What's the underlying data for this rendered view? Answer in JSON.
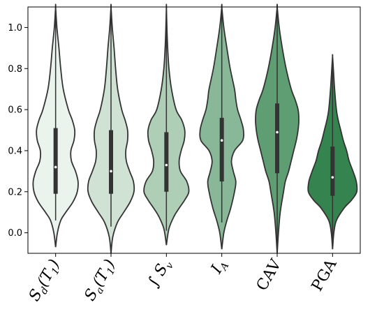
{
  "chart_data": {
    "type": "violin",
    "ylim": [
      -0.1,
      1.1
    ],
    "yticks": [
      0.0,
      0.2,
      0.4,
      0.6,
      0.8,
      1.0
    ],
    "ytick_labels": [
      "0.0",
      "0.2",
      "0.4",
      "0.6",
      "0.8",
      "1.0"
    ],
    "grid": false,
    "categories": [
      "S_d(T_1)",
      "S_a(T_1)",
      "∫S_v",
      "I_A",
      "CAV",
      "PGA"
    ],
    "category_labels": [
      {
        "main": "S",
        "sub": "d",
        "suffix": "(T",
        "sub2": "1",
        "end": ")"
      },
      {
        "main": "S",
        "sub": "a",
        "suffix": "(T",
        "sub2": "1",
        "end": ")"
      },
      {
        "main": "∫ S",
        "sub": "v",
        "suffix": "",
        "sub2": "",
        "end": ""
      },
      {
        "main": "I",
        "sub": "A",
        "suffix": "",
        "sub2": "",
        "end": ""
      },
      {
        "main": "CAV",
        "sub": "",
        "suffix": "",
        "sub2": "",
        "end": ""
      },
      {
        "main": "PGA",
        "sub": "",
        "suffix": "",
        "sub2": "",
        "end": ""
      }
    ],
    "colors": [
      "#eaf3ec",
      "#cfe2d4",
      "#aecfb5",
      "#89b898",
      "#5f9d72",
      "#35844f"
    ],
    "series": [
      {
        "min": -0.07,
        "max": 1.1,
        "q1": 0.19,
        "median": 0.32,
        "q3": 0.51,
        "whisker_low": 0.06,
        "whisker_high": 1.1,
        "density": [
          [
            -0.07,
            0
          ],
          [
            0.0,
            0.07
          ],
          [
            0.06,
            0.2
          ],
          [
            0.1,
            0.4
          ],
          [
            0.15,
            0.68
          ],
          [
            0.2,
            0.85
          ],
          [
            0.25,
            0.88
          ],
          [
            0.3,
            0.78
          ],
          [
            0.35,
            0.62
          ],
          [
            0.4,
            0.6
          ],
          [
            0.45,
            0.72
          ],
          [
            0.5,
            0.75
          ],
          [
            0.55,
            0.65
          ],
          [
            0.6,
            0.5
          ],
          [
            0.7,
            0.3
          ],
          [
            0.8,
            0.2
          ],
          [
            0.9,
            0.13
          ],
          [
            1.0,
            0.05
          ],
          [
            1.1,
            0
          ]
        ]
      },
      {
        "min": -0.1,
        "max": 1.1,
        "q1": 0.19,
        "median": 0.3,
        "q3": 0.5,
        "whisker_low": 0.03,
        "whisker_high": 1.1,
        "density": [
          [
            -0.1,
            0
          ],
          [
            -0.02,
            0.07
          ],
          [
            0.05,
            0.25
          ],
          [
            0.1,
            0.5
          ],
          [
            0.15,
            0.75
          ],
          [
            0.2,
            0.9
          ],
          [
            0.25,
            0.88
          ],
          [
            0.3,
            0.73
          ],
          [
            0.35,
            0.6
          ],
          [
            0.4,
            0.58
          ],
          [
            0.45,
            0.65
          ],
          [
            0.5,
            0.65
          ],
          [
            0.55,
            0.55
          ],
          [
            0.6,
            0.42
          ],
          [
            0.7,
            0.26
          ],
          [
            0.8,
            0.18
          ],
          [
            0.9,
            0.12
          ],
          [
            1.0,
            0.05
          ],
          [
            1.1,
            0
          ]
        ]
      },
      {
        "min": -0.06,
        "max": 1.1,
        "q1": 0.2,
        "median": 0.33,
        "q3": 0.49,
        "whisker_low": 0.01,
        "whisker_high": 1.1,
        "density": [
          [
            -0.06,
            0
          ],
          [
            0.02,
            0.1
          ],
          [
            0.08,
            0.3
          ],
          [
            0.12,
            0.5
          ],
          [
            0.16,
            0.72
          ],
          [
            0.2,
            0.88
          ],
          [
            0.25,
            0.8
          ],
          [
            0.3,
            0.55
          ],
          [
            0.35,
            0.5
          ],
          [
            0.4,
            0.58
          ],
          [
            0.45,
            0.7
          ],
          [
            0.5,
            0.72
          ],
          [
            0.55,
            0.6
          ],
          [
            0.6,
            0.38
          ],
          [
            0.7,
            0.2
          ],
          [
            0.8,
            0.1
          ],
          [
            0.9,
            0.05
          ],
          [
            1.0,
            0.02
          ],
          [
            1.1,
            0
          ]
        ]
      },
      {
        "min": -0.08,
        "max": 1.1,
        "q1": 0.25,
        "median": 0.45,
        "q3": 0.56,
        "whisker_low": 0.05,
        "whisker_high": 1.1,
        "density": [
          [
            -0.08,
            0
          ],
          [
            0.0,
            0.08
          ],
          [
            0.06,
            0.2
          ],
          [
            0.12,
            0.35
          ],
          [
            0.2,
            0.5
          ],
          [
            0.25,
            0.55
          ],
          [
            0.3,
            0.45
          ],
          [
            0.35,
            0.38
          ],
          [
            0.4,
            0.5
          ],
          [
            0.45,
            0.82
          ],
          [
            0.5,
            0.85
          ],
          [
            0.55,
            0.75
          ],
          [
            0.6,
            0.62
          ],
          [
            0.65,
            0.55
          ],
          [
            0.7,
            0.5
          ],
          [
            0.8,
            0.33
          ],
          [
            0.9,
            0.2
          ],
          [
            1.0,
            0.08
          ],
          [
            1.1,
            0
          ]
        ]
      },
      {
        "min": -0.1,
        "max": 1.1,
        "q1": 0.29,
        "median": 0.49,
        "q3": 0.63,
        "whisker_low": -0.1,
        "whisker_high": 1.1,
        "density": [
          [
            -0.1,
            0
          ],
          [
            0.0,
            0.05
          ],
          [
            0.1,
            0.12
          ],
          [
            0.2,
            0.25
          ],
          [
            0.25,
            0.32
          ],
          [
            0.3,
            0.45
          ],
          [
            0.35,
            0.55
          ],
          [
            0.4,
            0.65
          ],
          [
            0.45,
            0.75
          ],
          [
            0.5,
            0.82
          ],
          [
            0.55,
            0.85
          ],
          [
            0.6,
            0.82
          ],
          [
            0.65,
            0.7
          ],
          [
            0.7,
            0.55
          ],
          [
            0.8,
            0.35
          ],
          [
            0.9,
            0.2
          ],
          [
            1.0,
            0.08
          ],
          [
            1.1,
            0
          ]
        ]
      },
      {
        "min": -0.08,
        "max": 0.86,
        "q1": 0.18,
        "median": 0.27,
        "q3": 0.42,
        "whisker_low": -0.05,
        "whisker_high": 0.86,
        "density": [
          [
            -0.08,
            0
          ],
          [
            0.0,
            0.05
          ],
          [
            0.06,
            0.15
          ],
          [
            0.12,
            0.45
          ],
          [
            0.16,
            0.75
          ],
          [
            0.2,
            0.95
          ],
          [
            0.25,
            0.93
          ],
          [
            0.3,
            0.8
          ],
          [
            0.35,
            0.65
          ],
          [
            0.4,
            0.55
          ],
          [
            0.45,
            0.42
          ],
          [
            0.5,
            0.32
          ],
          [
            0.55,
            0.22
          ],
          [
            0.6,
            0.15
          ],
          [
            0.7,
            0.08
          ],
          [
            0.8,
            0.03
          ],
          [
            0.86,
            0
          ]
        ]
      }
    ]
  }
}
